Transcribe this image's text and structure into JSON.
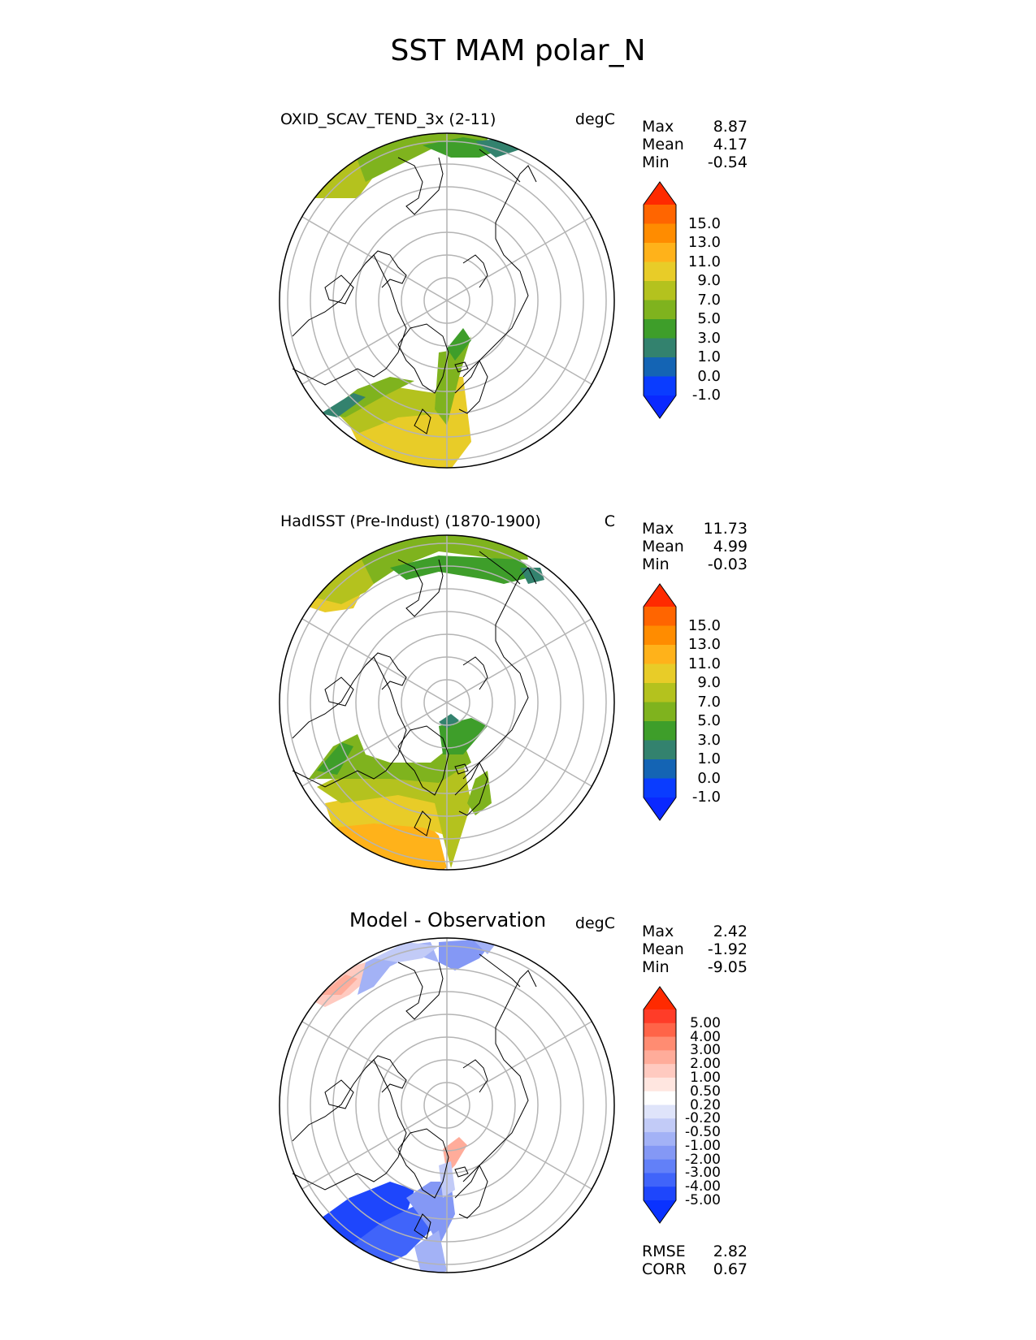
{
  "figure": {
    "title": "SST MAM polar_N"
  },
  "panels": [
    {
      "title": "OXID_SCAV_TEND_3x (2-11)",
      "units": "degC",
      "stats": [
        {
          "label": "Max",
          "value": "8.87"
        },
        {
          "label": "Mean",
          "value": "4.17"
        },
        {
          "label": "Min",
          "value": "-0.54"
        }
      ],
      "colorbar": {
        "ticks": [
          "15.0",
          "13.0",
          "11.0",
          "9.0",
          "7.0",
          "5.0",
          "3.0",
          "1.0",
          "0.0",
          "-1.0"
        ],
        "colors": [
          "#ff2a00",
          "#ff6500",
          "#ff8c00",
          "#ffb21a",
          "#e8cc28",
          "#b4c21e",
          "#7fb31e",
          "#3e9e2a",
          "#33826e",
          "#1464b4",
          "#0a3cff",
          "#0a28ff"
        ]
      }
    },
    {
      "title": "HadISST (Pre-Indust) (1870-1900)",
      "units": "C",
      "stats": [
        {
          "label": "Max",
          "value": "11.73"
        },
        {
          "label": "Mean",
          "value": "4.99"
        },
        {
          "label": "Min",
          "value": "-0.03"
        }
      ],
      "colorbar": {
        "ticks": [
          "15.0",
          "13.0",
          "11.0",
          "9.0",
          "7.0",
          "5.0",
          "3.0",
          "1.0",
          "0.0",
          "-1.0"
        ],
        "colors": [
          "#ff2a00",
          "#ff6500",
          "#ff8c00",
          "#ffb21a",
          "#e8cc28",
          "#b4c21e",
          "#7fb31e",
          "#3e9e2a",
          "#33826e",
          "#1464b4",
          "#0a3cff",
          "#0a28ff"
        ]
      }
    },
    {
      "title": "Model - Observation",
      "units": "degC",
      "stats": [
        {
          "label": "Max",
          "value": "2.42"
        },
        {
          "label": "Mean",
          "value": "-1.92"
        },
        {
          "label": "Min",
          "value": "-9.05"
        }
      ],
      "colorbar": {
        "ticks": [
          "5.00",
          "4.00",
          "3.00",
          "2.00",
          "1.00",
          "0.50",
          "0.20",
          "-0.20",
          "-0.50",
          "-1.00",
          "-2.00",
          "-3.00",
          "-4.00",
          "-5.00"
        ],
        "colors": [
          "#ff2a00",
          "#ff3c28",
          "#ff6448",
          "#ff8c72",
          "#ffac9a",
          "#ffcac0",
          "#ffe6e0",
          "#ffffff",
          "#dfe4fa",
          "#c2cbf7",
          "#a3b2f6",
          "#8498f5",
          "#6280f8",
          "#4064fa",
          "#1e46fc",
          "#0a32ff"
        ]
      },
      "metrics": [
        {
          "label": "RMSE",
          "value": "2.82"
        },
        {
          "label": "CORR",
          "value": "0.67"
        }
      ]
    }
  ]
}
